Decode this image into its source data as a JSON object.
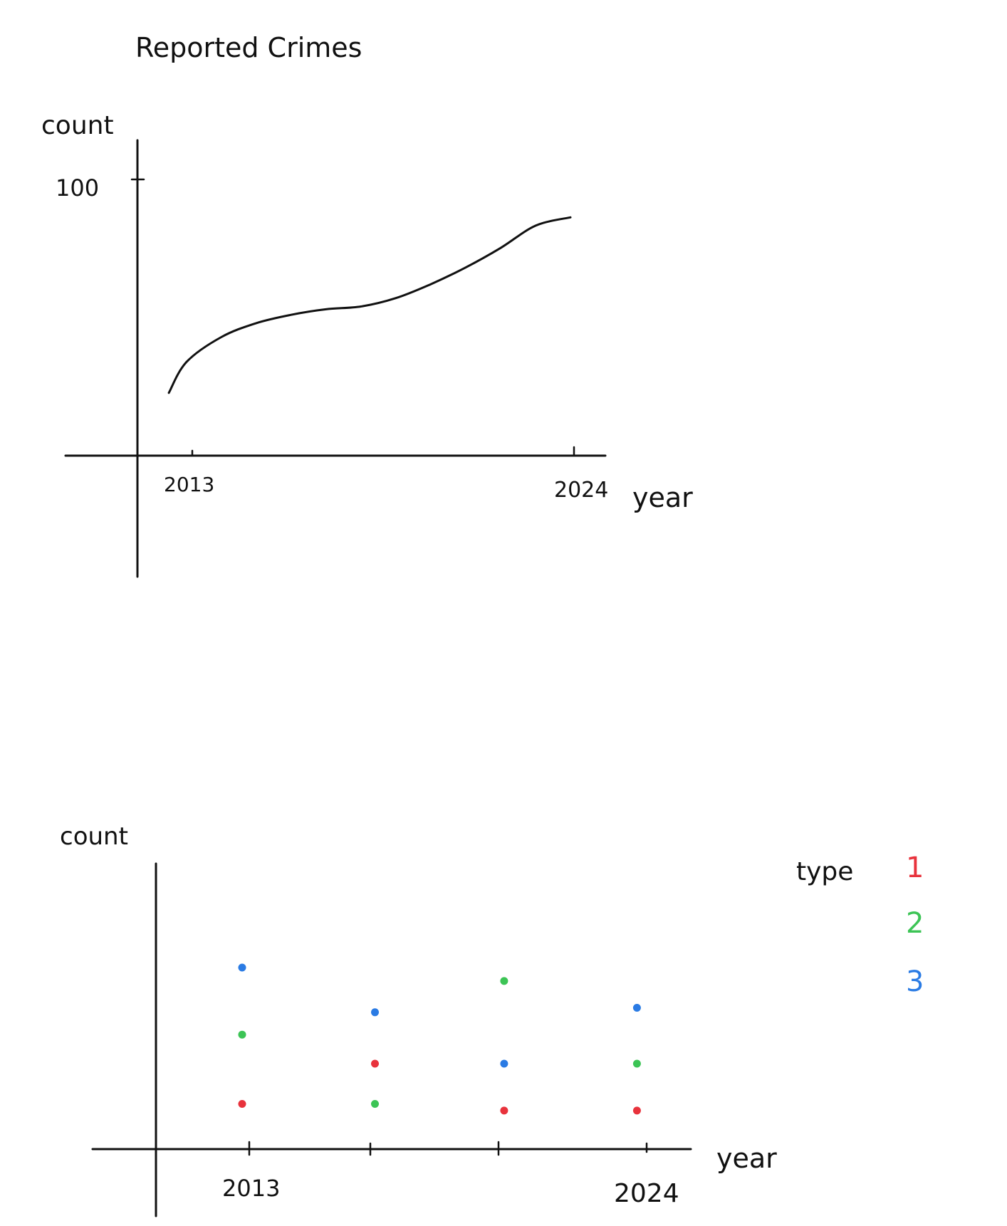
{
  "chart_data": [
    {
      "type": "line",
      "title": "Reported Crimes",
      "xlabel": "year",
      "ylabel": "count",
      "x_tick_labels": [
        "2013",
        "2024"
      ],
      "y_tick_labels": [
        "100"
      ],
      "xlim": [
        2011.6,
        2025
      ],
      "ylim": [
        -44,
        105
      ],
      "grid": false,
      "series": [
        {
          "x": [
            2012.5,
            2013,
            2014,
            2015,
            2016,
            2017,
            2018,
            2019,
            2020,
            2021,
            2022,
            2023,
            2024
          ],
          "values": [
            22,
            33,
            42,
            47,
            50,
            52,
            53,
            56,
            61,
            67,
            74,
            82,
            85
          ],
          "color": "#111111"
        }
      ]
    },
    {
      "type": "scatter",
      "xlabel": "year",
      "ylabel": "count",
      "x_tick_labels": [
        "2013",
        "",
        "",
        "2024"
      ],
      "xlim": [
        2010.6,
        2025.5
      ],
      "ylim": [
        -12,
        105
      ],
      "grid": false,
      "legend": {
        "title": "type",
        "position": "right",
        "entries": [
          {
            "label": "1",
            "color": "#e8323c"
          },
          {
            "label": "2",
            "color": "#3cc455"
          },
          {
            "label": "3",
            "color": "#2a7be4"
          }
        ]
      },
      "series": [
        {
          "name": "1",
          "color": "#e8323c",
          "x": [
            2013,
            2016.7,
            2020.3,
            2024
          ],
          "values": [
            22,
            40,
            19,
            19
          ]
        },
        {
          "name": "2",
          "color": "#3cc455",
          "x": [
            2013,
            2016.7,
            2020.3,
            2024
          ],
          "values": [
            53,
            22,
            77,
            40
          ]
        },
        {
          "name": "3",
          "color": "#2a7be4",
          "x": [
            2013,
            2016.7,
            2020.3,
            2024
          ],
          "values": [
            83,
            63,
            40,
            65
          ]
        }
      ]
    }
  ]
}
